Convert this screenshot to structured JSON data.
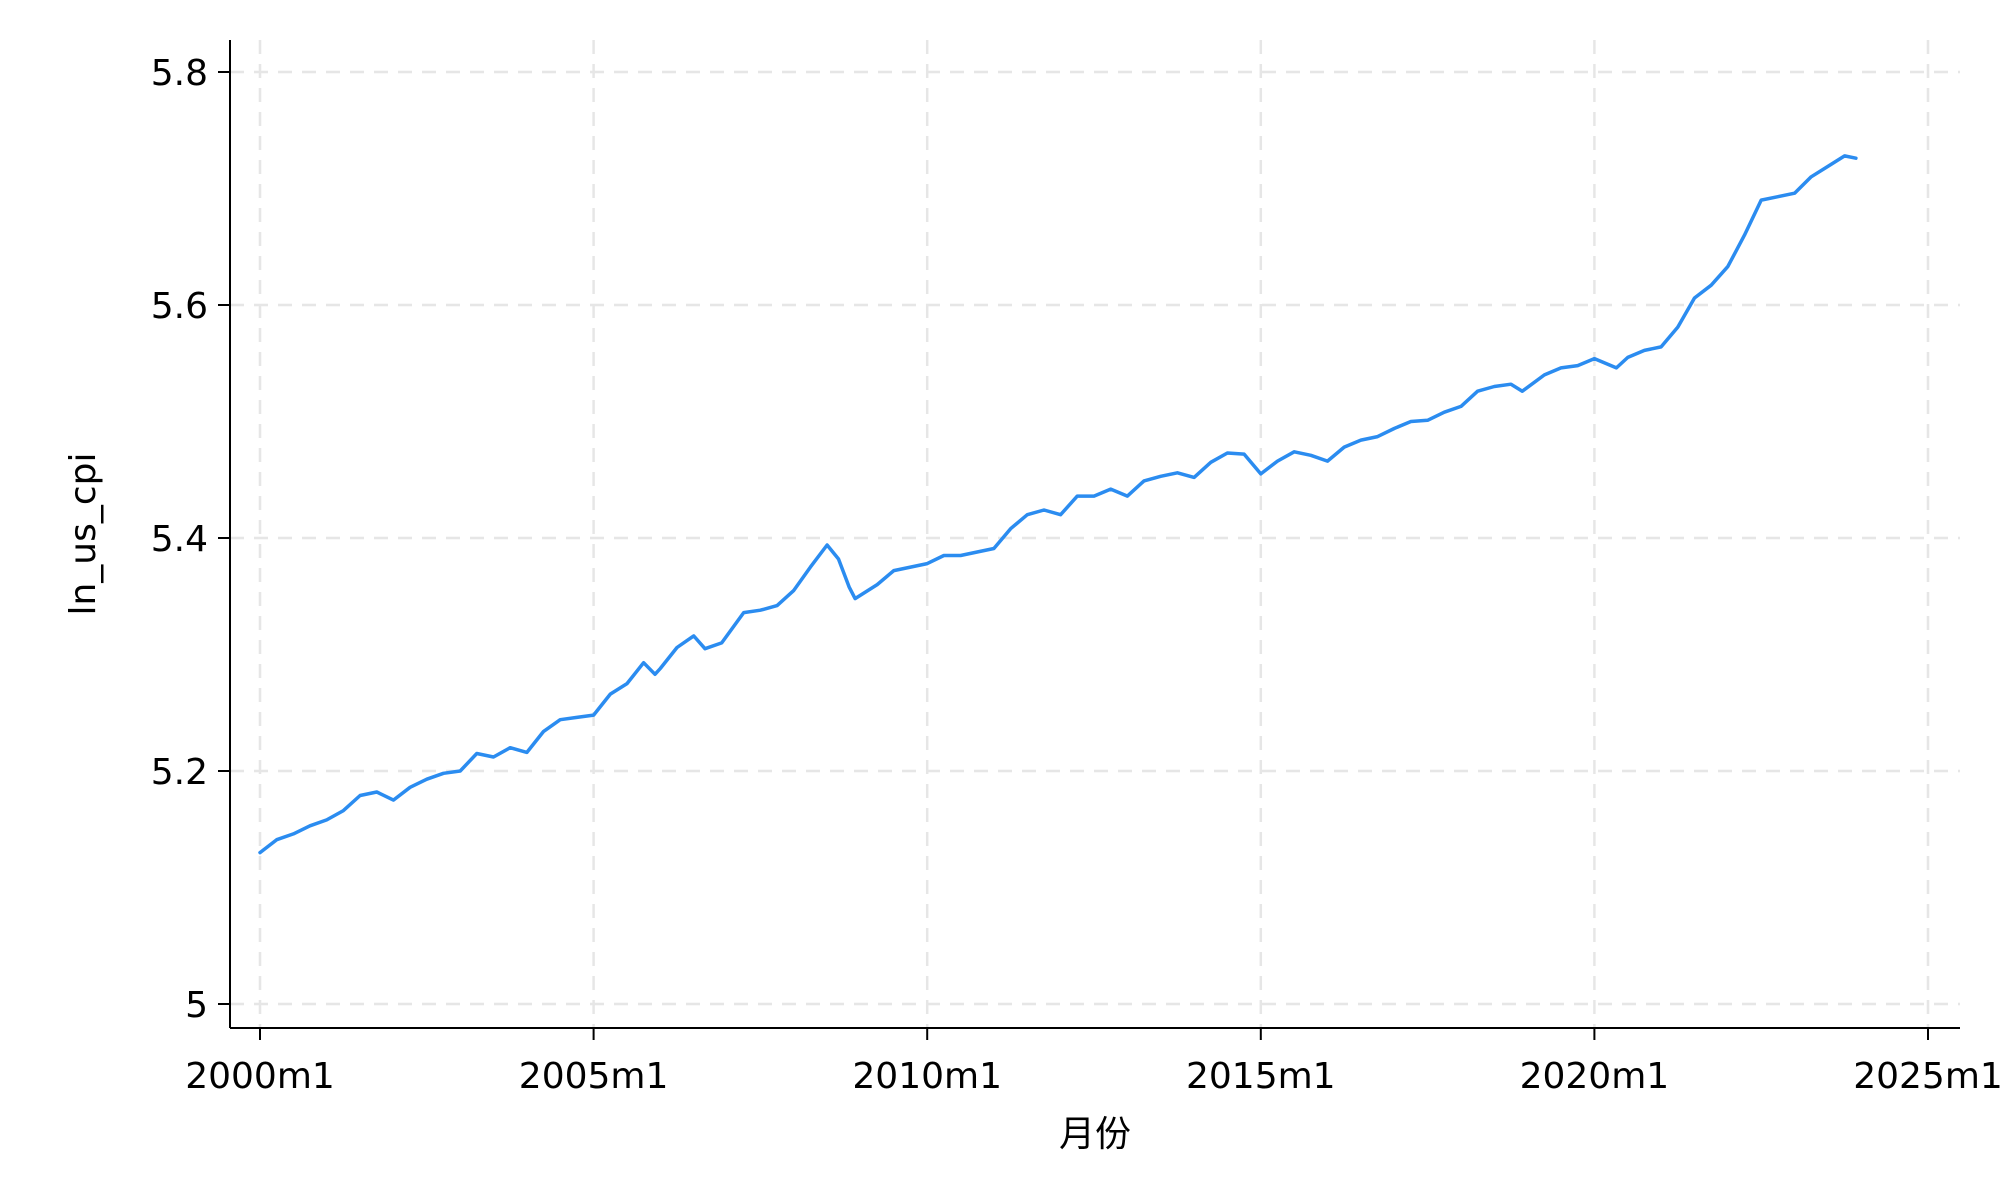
{
  "chart_data": {
    "type": "line",
    "title": "",
    "xlabel": "月份",
    "ylabel": "ln_us_cpi",
    "grid": true,
    "legend": "none",
    "x_unit": "year (decimal, monthly data)",
    "xlim": [
      2000.0,
      2025.0
    ],
    "ylim": [
      5.0,
      5.8
    ],
    "x_ticks": [
      {
        "value": 2000,
        "label": "2000m1"
      },
      {
        "value": 2005,
        "label": "2005m1"
      },
      {
        "value": 2010,
        "label": "2010m1"
      },
      {
        "value": 2015,
        "label": "2015m1"
      },
      {
        "value": 2020,
        "label": "2020m1"
      },
      {
        "value": 2025,
        "label": "2025m1"
      }
    ],
    "y_ticks": [
      {
        "value": 5.0,
        "label": "5"
      },
      {
        "value": 5.2,
        "label": "5.2"
      },
      {
        "value": 5.4,
        "label": "5.4"
      },
      {
        "value": 5.6,
        "label": "5.6"
      },
      {
        "value": 5.8,
        "label": "5.8"
      }
    ],
    "series": [
      {
        "color": "#2b8cf0",
        "points": [
          [
            2000.0,
            5.13
          ],
          [
            2000.25,
            5.141
          ],
          [
            2000.5,
            5.146
          ],
          [
            2000.75,
            5.153
          ],
          [
            2001.0,
            5.158
          ],
          [
            2001.25,
            5.166
          ],
          [
            2001.5,
            5.179
          ],
          [
            2001.75,
            5.182
          ],
          [
            2002.0,
            5.175
          ],
          [
            2002.25,
            5.186
          ],
          [
            2002.5,
            5.193
          ],
          [
            2002.75,
            5.198
          ],
          [
            2003.0,
            5.2
          ],
          [
            2003.25,
            5.215
          ],
          [
            2003.5,
            5.212
          ],
          [
            2003.75,
            5.22
          ],
          [
            2004.0,
            5.216
          ],
          [
            2004.25,
            5.234
          ],
          [
            2004.5,
            5.244
          ],
          [
            2004.75,
            5.246
          ],
          [
            2005.0,
            5.248
          ],
          [
            2005.25,
            5.266
          ],
          [
            2005.5,
            5.275
          ],
          [
            2005.75,
            5.293
          ],
          [
            2005.92,
            5.283
          ],
          [
            2006.0,
            5.288
          ],
          [
            2006.25,
            5.306
          ],
          [
            2006.5,
            5.316
          ],
          [
            2006.67,
            5.305
          ],
          [
            2006.92,
            5.31
          ],
          [
            2007.25,
            5.336
          ],
          [
            2007.5,
            5.338
          ],
          [
            2007.75,
            5.342
          ],
          [
            2008.0,
            5.355
          ],
          [
            2008.25,
            5.375
          ],
          [
            2008.5,
            5.394
          ],
          [
            2008.67,
            5.382
          ],
          [
            2008.83,
            5.358
          ],
          [
            2008.92,
            5.348
          ],
          [
            2009.25,
            5.36
          ],
          [
            2009.5,
            5.372
          ],
          [
            2009.75,
            5.375
          ],
          [
            2010.0,
            5.378
          ],
          [
            2010.25,
            5.385
          ],
          [
            2010.5,
            5.385
          ],
          [
            2010.75,
            5.388
          ],
          [
            2011.0,
            5.391
          ],
          [
            2011.25,
            5.408
          ],
          [
            2011.5,
            5.42
          ],
          [
            2011.75,
            5.424
          ],
          [
            2012.0,
            5.42
          ],
          [
            2012.25,
            5.436
          ],
          [
            2012.5,
            5.436
          ],
          [
            2012.75,
            5.442
          ],
          [
            2013.0,
            5.436
          ],
          [
            2013.25,
            5.449
          ],
          [
            2013.5,
            5.453
          ],
          [
            2013.75,
            5.456
          ],
          [
            2014.0,
            5.452
          ],
          [
            2014.25,
            5.465
          ],
          [
            2014.5,
            5.473
          ],
          [
            2014.75,
            5.472
          ],
          [
            2015.0,
            5.455
          ],
          [
            2015.25,
            5.466
          ],
          [
            2015.5,
            5.474
          ],
          [
            2015.75,
            5.471
          ],
          [
            2016.0,
            5.466
          ],
          [
            2016.25,
            5.478
          ],
          [
            2016.5,
            5.484
          ],
          [
            2016.75,
            5.487
          ],
          [
            2017.0,
            5.494
          ],
          [
            2017.25,
            5.5
          ],
          [
            2017.5,
            5.501
          ],
          [
            2017.75,
            5.508
          ],
          [
            2018.0,
            5.513
          ],
          [
            2018.25,
            5.526
          ],
          [
            2018.5,
            5.53
          ],
          [
            2018.75,
            5.532
          ],
          [
            2018.92,
            5.526
          ],
          [
            2019.25,
            5.54
          ],
          [
            2019.5,
            5.546
          ],
          [
            2019.75,
            5.548
          ],
          [
            2020.0,
            5.554
          ],
          [
            2020.33,
            5.546
          ],
          [
            2020.5,
            5.555
          ],
          [
            2020.75,
            5.561
          ],
          [
            2021.0,
            5.564
          ],
          [
            2021.25,
            5.581
          ],
          [
            2021.5,
            5.606
          ],
          [
            2021.75,
            5.617
          ],
          [
            2022.0,
            5.633
          ],
          [
            2022.25,
            5.66
          ],
          [
            2022.5,
            5.69
          ],
          [
            2022.75,
            5.693
          ],
          [
            2023.0,
            5.696
          ],
          [
            2023.25,
            5.71
          ],
          [
            2023.5,
            5.719
          ],
          [
            2023.75,
            5.728
          ],
          [
            2023.92,
            5.726
          ]
        ]
      }
    ]
  }
}
